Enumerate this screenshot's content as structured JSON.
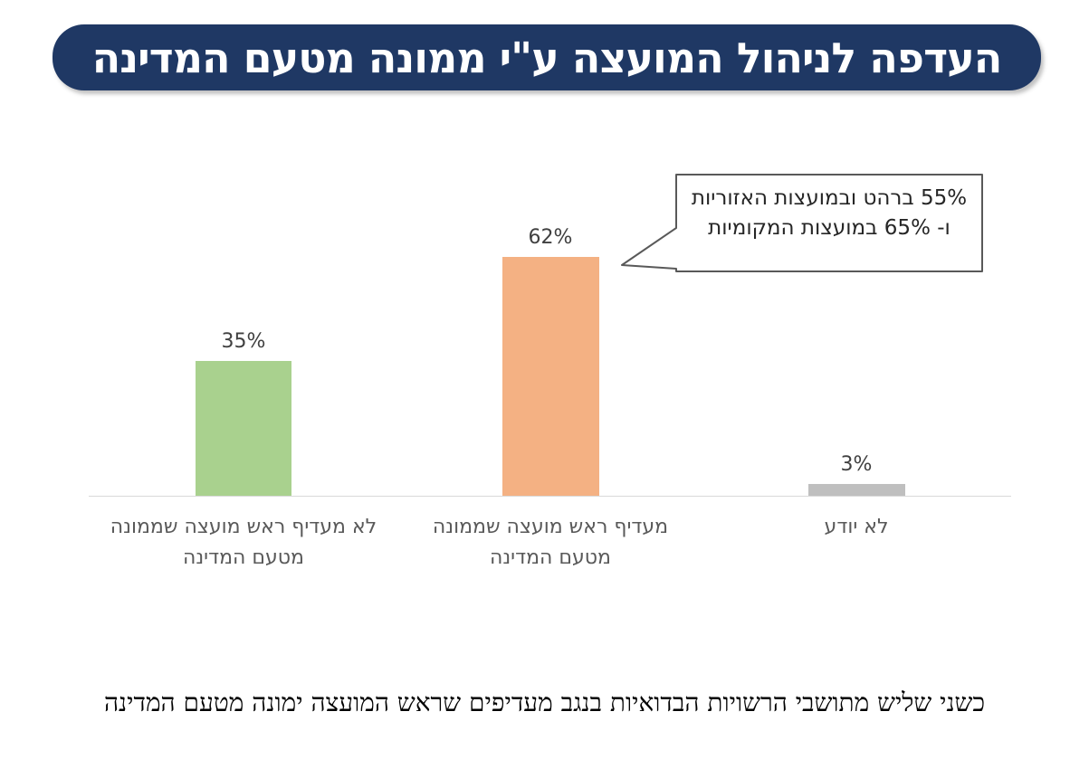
{
  "title": {
    "text": "העדפה לניהול המועצה ע\"י ממונה מטעם המדינה",
    "bg_color": "#1F3864",
    "text_color": "#FFFFFF"
  },
  "chart_data": {
    "type": "bar",
    "title": "העדפה לניהול המועצה ע\"י ממונה מטעם המדינה",
    "unit": "%",
    "order_note": "bars listed in visual left-to-right order",
    "categories": [
      "לא מעדיף ראש מועצה שממונה מטעם המדינה",
      "מעדיף ראש מועצה שממונה מטעם המדינה",
      "לא יודע"
    ],
    "values": [
      35,
      62,
      3
    ],
    "ylim": [
      0,
      100
    ],
    "grid": false,
    "legend": false,
    "axis_line_color": "#D9D9D9",
    "bars": [
      {
        "value": 35,
        "value_label": "35%",
        "label_line1": "לא מעדיף ראש מועצה שממונה",
        "label_line2": "מטעם המדינה",
        "color": "#A9D18E"
      },
      {
        "value": 62,
        "value_label": "62%",
        "label_line1": "מעדיף ראש מועצה שממונה",
        "label_line2": "מטעם המדינה",
        "color": "#F4B183"
      },
      {
        "value": 3,
        "value_label": "3%",
        "label_line1": "לא יודע",
        "label_line2": "",
        "color": "#BFBFBF"
      }
    ],
    "annotation": "55% ברהט ובמועצות האזוריות ו- 65% במועצות המקומיות"
  },
  "callout": {
    "line1": "55% ברהט ובמועצות האזוריות",
    "line2": "ו- 65% במועצות המקומיות",
    "border_color": "#595959"
  },
  "footer": {
    "text": "כשני שליש מתושבי הרשויות הבדואיות בנגב מעדיפים שראש המועצה ימונה מטעם המדינה"
  },
  "colors": {
    "banner_navy": "#1F3864",
    "bar_green": "#A9D18E",
    "bar_orange": "#F4B183",
    "bar_gray": "#BFBFBF",
    "axis_gray": "#D9D9D9",
    "category_label_gray": "#595959",
    "value_label_gray": "#404040"
  }
}
